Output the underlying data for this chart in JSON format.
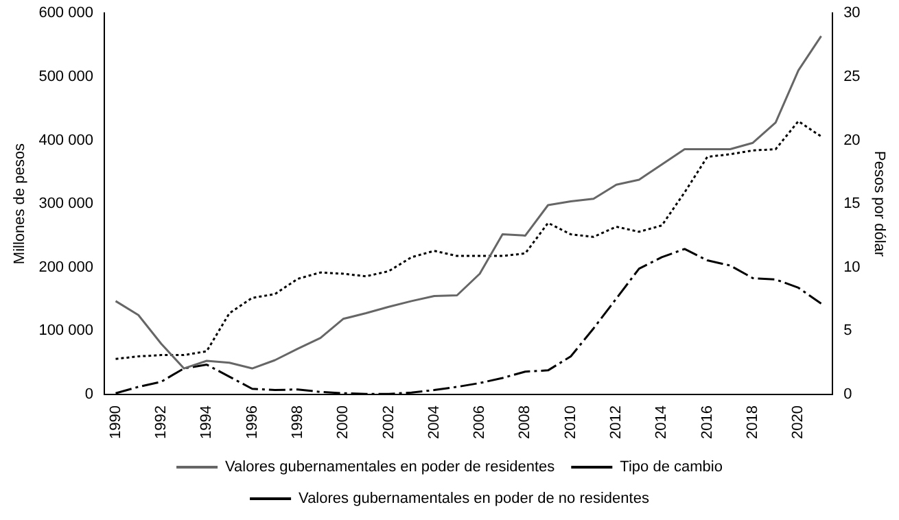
{
  "chart_data": {
    "type": "line",
    "categories": [
      "1990",
      null,
      "1992",
      null,
      "1994",
      null,
      "1996",
      null,
      "1998",
      null,
      "2000",
      null,
      "2002",
      null,
      "2004",
      null,
      "2006",
      null,
      "2008",
      null,
      "2010",
      null,
      "2012",
      null,
      "2014",
      null,
      "2016",
      null,
      "2018",
      null,
      "2020",
      null
    ],
    "series": [
      {
        "name": "Valores gubernamentales en poder de residentes",
        "color": "#666666",
        "line_style": "solid",
        "values": [
          147000,
          125000,
          80000,
          41000,
          53000,
          50000,
          41000,
          54000,
          72000,
          89000,
          119000,
          128000,
          138000,
          147000,
          155000,
          156000,
          190000,
          252000,
          250000,
          298000,
          304000,
          308000,
          330000,
          338000,
          362000,
          386000,
          386000,
          386000,
          396000,
          428000,
          510000,
          564000
        ]
      },
      {
        "name": "Tipo de cambio",
        "color": "#000000",
        "line_style": "dotted",
        "axis": "y2",
        "values": [
          2.8,
          3.0,
          3.1,
          3.1,
          3.4,
          6.4,
          7.6,
          7.9,
          9.1,
          9.6,
          9.5,
          9.3,
          9.7,
          10.8,
          11.3,
          10.9,
          10.9,
          10.9,
          11.1,
          13.5,
          12.6,
          12.4,
          13.2,
          12.8,
          13.3,
          15.9,
          18.7,
          18.9,
          19.2,
          19.3,
          21.5,
          20.3
        ]
      },
      {
        "name": "Valores gubernamentales en poder de no residentes",
        "color": "#000000",
        "line_style": "dashed",
        "values": [
          2000,
          12000,
          20000,
          41000,
          47000,
          28000,
          9000,
          7000,
          8000,
          4000,
          2000,
          1000,
          1000,
          3000,
          7000,
          12000,
          18000,
          26000,
          36000,
          38000,
          60000,
          104000,
          151000,
          198000,
          216000,
          229000,
          211000,
          203000,
          183000,
          181000,
          168000,
          143000
        ]
      }
    ],
    "ylabel": "Millones de pesos",
    "y2label": "Pesos por dólar",
    "ylim": [
      0,
      600000
    ],
    "yticks": [
      0,
      {
        "value": 100000,
        "label": "100 000"
      },
      {
        "value": 200000,
        "label": "200 000"
      },
      {
        "value": 300000,
        "label": "300 000"
      },
      {
        "value": 400000,
        "label": "400 000"
      },
      {
        "value": 500000,
        "label": "500 000"
      },
      {
        "value": 600000,
        "label": "600 000"
      }
    ],
    "y2lim": [
      0,
      30
    ],
    "y2ticks": [
      0,
      5,
      10,
      15,
      20,
      25,
      30
    ],
    "grid": false,
    "legend": "bottom",
    "marker": "none"
  }
}
